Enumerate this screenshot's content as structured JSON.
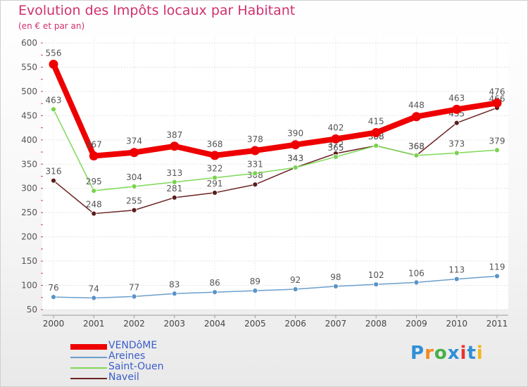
{
  "chart_data": {
    "type": "line",
    "title": "Evolution des Impôts locaux par Habitant",
    "subtitle": "(en € et par an)",
    "xlabel": "",
    "ylabel": "",
    "ylim": [
      50,
      600
    ],
    "yticks": [
      50,
      100,
      150,
      200,
      250,
      300,
      350,
      400,
      450,
      500,
      550,
      600
    ],
    "grid": true,
    "x": [
      "2000",
      "2001",
      "2002",
      "2003",
      "2004",
      "2005",
      "2006",
      "2007",
      "2008",
      "2009",
      "2010",
      "2011"
    ],
    "series": [
      {
        "name": "Naveil",
        "color": "#6b2323",
        "values": [
          316,
          248,
          255,
          281,
          291,
          308,
          343,
          372,
          388,
          368,
          435,
          466
        ]
      },
      {
        "name": "Saint-Ouen",
        "color": "#7ed957",
        "values": [
          463,
          295,
          304,
          313,
          322,
          331,
          343,
          365,
          388,
          368,
          373,
          379
        ]
      },
      {
        "name": "Areines",
        "color": "#6b9fcc",
        "values": [
          76,
          74,
          77,
          83,
          86,
          89,
          92,
          98,
          102,
          106,
          113,
          119
        ]
      },
      {
        "name": "VENDôME",
        "color": "#ee0000",
        "values": [
          556,
          367,
          374,
          387,
          368,
          378,
          390,
          402,
          415,
          448,
          463,
          476
        ]
      }
    ],
    "legend": [
      "VENDôME",
      "Areines",
      "Saint-Ouen",
      "Naveil"
    ],
    "legend_position": "bottom-left"
  },
  "logo": {
    "text": "Proxiti",
    "letters": [
      "P",
      "r",
      "o",
      "x",
      "i",
      "t",
      "i"
    ],
    "colors": [
      "#2f8fd6",
      "#f08a1c",
      "#48b048",
      "#2f8fd6",
      "#e8352f",
      "#2f8fd6",
      "#f0b81c"
    ]
  }
}
